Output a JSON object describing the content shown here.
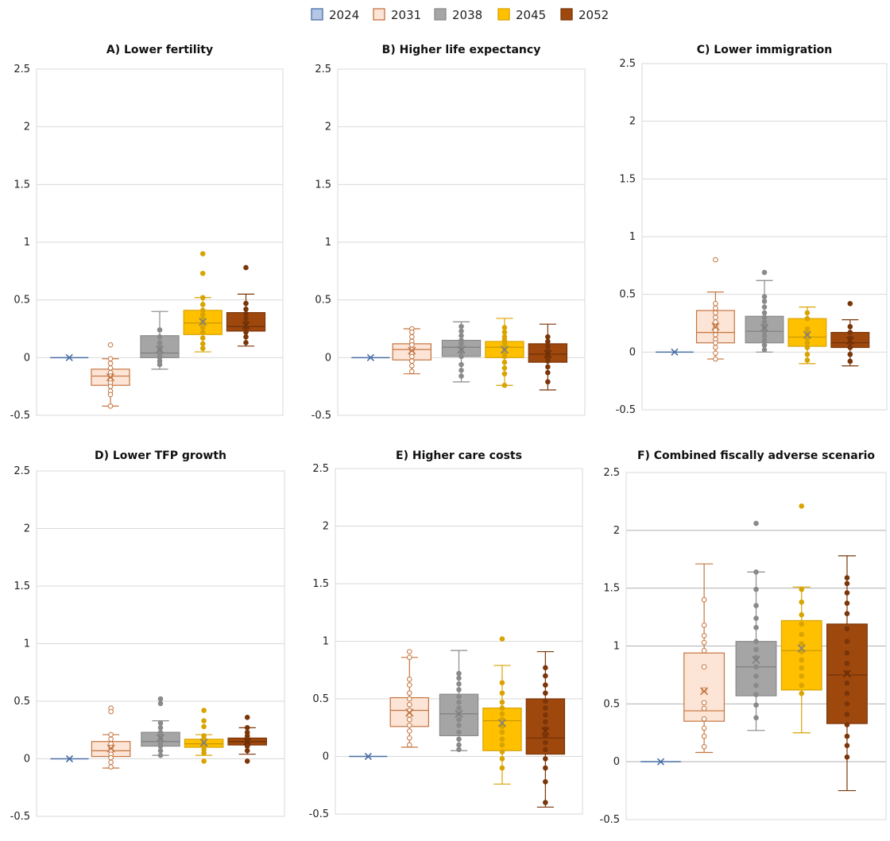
{
  "legend": [
    {
      "label": "2024",
      "fill": "#b4c7e7",
      "stroke": "#4a6fa5"
    },
    {
      "label": "2031",
      "fill": "#fce4d6",
      "stroke": "#c5743f"
    },
    {
      "label": "2038",
      "fill": "#a5a5a5",
      "stroke": "#8a8a8a"
    },
    {
      "label": "2045",
      "fill": "#ffc000",
      "stroke": "#d9a300"
    },
    {
      "label": "2052",
      "fill": "#9e480e",
      "stroke": "#7a3508"
    }
  ],
  "chart_data": [
    {
      "type": "boxplot",
      "title": "A) Lower fertility",
      "ylim": [
        -0.5,
        2.5
      ],
      "yticks": [
        "2.5",
        "2",
        "1.5",
        "1",
        "0.5",
        "0",
        "-0.5"
      ],
      "grid": true,
      "series": [
        {
          "name": "2024",
          "min": 0,
          "q1": 0,
          "median": 0,
          "q3": 0,
          "max": 0,
          "mean": 0,
          "points": []
        },
        {
          "name": "2031",
          "min": -0.42,
          "q1": -0.24,
          "median": -0.16,
          "q3": -0.1,
          "max": -0.01,
          "mean": -0.17,
          "points": [
            0.11,
            -0.01,
            -0.05,
            -0.09,
            -0.13,
            -0.16,
            -0.19,
            -0.22,
            -0.25,
            -0.29,
            -0.32,
            -0.42
          ]
        },
        {
          "name": "2038",
          "min": -0.1,
          "q1": 0.0,
          "median": 0.04,
          "q3": 0.19,
          "max": 0.4,
          "mean": 0.07,
          "points": [
            0.24,
            0.18,
            0.13,
            0.09,
            0.06,
            0.03,
            0.0,
            -0.03,
            -0.06
          ]
        },
        {
          "name": "2045",
          "min": 0.05,
          "q1": 0.2,
          "median": 0.3,
          "q3": 0.41,
          "max": 0.52,
          "mean": 0.31,
          "points": [
            0.9,
            0.73,
            0.52,
            0.46,
            0.41,
            0.37,
            0.33,
            0.3,
            0.26,
            0.22,
            0.17,
            0.12,
            0.08
          ]
        },
        {
          "name": "2052",
          "min": 0.1,
          "q1": 0.23,
          "median": 0.27,
          "q3": 0.39,
          "max": 0.55,
          "mean": 0.28,
          "points": [
            0.78,
            0.47,
            0.42,
            0.38,
            0.34,
            0.3,
            0.26,
            0.22,
            0.18,
            0.13
          ]
        }
      ]
    },
    {
      "type": "boxplot",
      "title": "B) Higher life expectancy",
      "ylim": [
        -0.5,
        2.5
      ],
      "yticks": [
        "2.5",
        "2",
        "1.5",
        "1",
        "0.5",
        "0",
        "-0.5"
      ],
      "grid": true,
      "series": [
        {
          "name": "2024",
          "min": 0,
          "q1": 0,
          "median": 0,
          "q3": 0,
          "max": 0,
          "mean": 0,
          "points": []
        },
        {
          "name": "2031",
          "min": -0.14,
          "q1": -0.02,
          "median": 0.07,
          "q3": 0.12,
          "max": 0.25,
          "mean": 0.06,
          "points": [
            0.25,
            0.22,
            0.18,
            0.14,
            0.11,
            0.07,
            0.04,
            0.01,
            -0.03,
            -0.07,
            -0.12
          ]
        },
        {
          "name": "2038",
          "min": -0.21,
          "q1": 0.01,
          "median": 0.09,
          "q3": 0.15,
          "max": 0.31,
          "mean": 0.07,
          "points": [
            0.27,
            0.23,
            0.19,
            0.15,
            0.12,
            0.08,
            0.05,
            0.01,
            -0.06,
            -0.11,
            -0.16
          ]
        },
        {
          "name": "2045",
          "min": -0.24,
          "q1": 0.0,
          "median": 0.09,
          "q3": 0.14,
          "max": 0.34,
          "mean": 0.07,
          "points": [
            0.26,
            0.22,
            0.18,
            0.15,
            0.12,
            0.08,
            0.04,
            0.01,
            -0.04,
            -0.09,
            -0.14,
            -0.24
          ]
        },
        {
          "name": "2052",
          "min": -0.28,
          "q1": -0.04,
          "median": 0.03,
          "q3": 0.12,
          "max": 0.29,
          "mean": 0.03,
          "points": [
            0.18,
            0.14,
            0.1,
            0.06,
            0.03,
            0.0,
            -0.03,
            -0.08,
            -0.13,
            -0.21
          ]
        }
      ]
    },
    {
      "type": "boxplot",
      "title": "C) Lower immigration",
      "ylim": [
        -0.5,
        2.5
      ],
      "yticks": [
        "2.5",
        "2",
        "1.5",
        "1",
        "0.5",
        "0",
        "-0.5"
      ],
      "grid": true,
      "series": [
        {
          "name": "2024",
          "min": 0,
          "q1": 0,
          "median": 0,
          "q3": 0,
          "max": 0,
          "mean": 0,
          "points": []
        },
        {
          "name": "2031",
          "min": -0.06,
          "q1": 0.08,
          "median": 0.17,
          "q3": 0.36,
          "max": 0.52,
          "mean": 0.22,
          "points": [
            0.8,
            0.42,
            0.38,
            0.34,
            0.3,
            0.26,
            0.22,
            0.19,
            0.15,
            0.11,
            0.08,
            0.04,
            -0.01,
            -0.06
          ]
        },
        {
          "name": "2038",
          "min": 0.0,
          "q1": 0.08,
          "median": 0.18,
          "q3": 0.31,
          "max": 0.62,
          "mean": 0.21,
          "points": [
            0.69,
            0.48,
            0.44,
            0.39,
            0.34,
            0.3,
            0.26,
            0.22,
            0.18,
            0.14,
            0.1,
            0.06,
            0.02
          ]
        },
        {
          "name": "2045",
          "min": -0.1,
          "q1": 0.05,
          "median": 0.13,
          "q3": 0.29,
          "max": 0.39,
          "mean": 0.15,
          "points": [
            0.34,
            0.29,
            0.2,
            0.16,
            0.12,
            0.08,
            0.04,
            -0.02,
            -0.07
          ]
        },
        {
          "name": "2052",
          "min": -0.12,
          "q1": 0.04,
          "median": 0.08,
          "q3": 0.17,
          "max": 0.28,
          "mean": 0.1,
          "points": [
            0.42,
            0.22,
            0.17,
            0.12,
            0.08,
            0.04,
            -0.02,
            -0.08
          ]
        }
      ]
    },
    {
      "type": "boxplot",
      "title": "D) Lower TFP growth",
      "ylim": [
        -0.5,
        2.5
      ],
      "yticks": [
        "2.5",
        "2",
        "1.5",
        "1",
        "0.5",
        "0",
        "-0.5"
      ],
      "grid": true,
      "series": [
        {
          "name": "2024",
          "min": 0,
          "q1": 0,
          "median": 0,
          "q3": 0,
          "max": 0,
          "mean": 0,
          "points": []
        },
        {
          "name": "2031",
          "min": -0.08,
          "q1": 0.02,
          "median": 0.07,
          "q3": 0.15,
          "max": 0.21,
          "mean": 0.09,
          "points": [
            0.44,
            0.41,
            0.21,
            0.17,
            0.13,
            0.1,
            0.07,
            0.04,
            0.01,
            -0.03,
            -0.07
          ]
        },
        {
          "name": "2038",
          "min": 0.03,
          "q1": 0.11,
          "median": 0.15,
          "q3": 0.23,
          "max": 0.33,
          "mean": 0.18,
          "points": [
            0.52,
            0.48,
            0.31,
            0.27,
            0.23,
            0.2,
            0.17,
            0.14,
            0.11,
            0.07,
            0.03
          ]
        },
        {
          "name": "2045",
          "min": 0.03,
          "q1": 0.1,
          "median": 0.13,
          "q3": 0.17,
          "max": 0.21,
          "mean": 0.14,
          "points": [
            0.42,
            0.33,
            0.28,
            0.2,
            0.17,
            0.14,
            0.11,
            0.08,
            0.05,
            -0.02
          ]
        },
        {
          "name": "2052",
          "min": 0.04,
          "q1": 0.12,
          "median": 0.15,
          "q3": 0.18,
          "max": 0.27,
          "mean": 0.15,
          "points": [
            0.36,
            0.27,
            0.23,
            0.2,
            0.17,
            0.14,
            0.11,
            0.07,
            -0.02
          ]
        }
      ]
    },
    {
      "type": "boxplot",
      "title": "E) Higher care costs",
      "ylim": [
        -0.5,
        2.5
      ],
      "yticks": [
        "2.5",
        "2",
        "1.5",
        "1",
        "0.5",
        "0",
        "-0.5"
      ],
      "grid": true,
      "series": [
        {
          "name": "2024",
          "min": 0,
          "q1": 0,
          "median": 0,
          "q3": 0,
          "max": 0,
          "mean": 0,
          "points": []
        },
        {
          "name": "2031",
          "min": 0.08,
          "q1": 0.26,
          "median": 0.4,
          "q3": 0.51,
          "max": 0.86,
          "mean": 0.38,
          "points": [
            0.91,
            0.86,
            0.67,
            0.62,
            0.55,
            0.5,
            0.45,
            0.4,
            0.36,
            0.32,
            0.27,
            0.22,
            0.16,
            0.1
          ]
        },
        {
          "name": "2038",
          "min": 0.05,
          "q1": 0.18,
          "median": 0.37,
          "q3": 0.54,
          "max": 0.92,
          "mean": 0.37,
          "points": [
            0.72,
            0.68,
            0.63,
            0.58,
            0.52,
            0.47,
            0.42,
            0.37,
            0.32,
            0.27,
            0.21,
            0.15,
            0.1,
            0.06
          ]
        },
        {
          "name": "2045",
          "min": -0.24,
          "q1": 0.05,
          "median": 0.31,
          "q3": 0.42,
          "max": 0.79,
          "mean": 0.29,
          "points": [
            1.02,
            0.64,
            0.55,
            0.47,
            0.42,
            0.37,
            0.32,
            0.26,
            0.21,
            0.15,
            0.1,
            0.04,
            -0.02,
            -0.1
          ]
        },
        {
          "name": "2052",
          "min": -0.44,
          "q1": 0.02,
          "median": 0.16,
          "q3": 0.5,
          "max": 0.91,
          "mean": 0.22,
          "points": [
            0.77,
            0.7,
            0.62,
            0.55,
            0.48,
            0.42,
            0.36,
            0.3,
            0.24,
            0.18,
            0.12,
            0.06,
            -0.02,
            -0.1,
            -0.22,
            -0.4
          ]
        }
      ]
    },
    {
      "type": "boxplot",
      "title": "F) Combined fiscally adverse scenario",
      "ylim": [
        -0.5,
        2.5
      ],
      "yticks": [
        "2.5",
        "2",
        "1.5",
        "1",
        "0.5",
        "0",
        "-0.5"
      ],
      "grid": true,
      "series": [
        {
          "name": "2024",
          "min": 0,
          "q1": 0,
          "median": 0,
          "q3": 0,
          "max": 0,
          "mean": 0,
          "points": []
        },
        {
          "name": "2031",
          "min": 0.08,
          "q1": 0.35,
          "median": 0.44,
          "q3": 0.94,
          "max": 1.71,
          "mean": 0.61,
          "points": [
            1.4,
            1.18,
            1.09,
            1.03,
            0.96,
            0.82,
            0.62,
            0.51,
            0.46,
            0.37,
            0.29,
            0.22,
            0.13
          ]
        },
        {
          "name": "2038",
          "min": 0.27,
          "q1": 0.57,
          "median": 0.82,
          "q3": 1.04,
          "max": 1.64,
          "mean": 0.88,
          "points": [
            2.06,
            1.64,
            1.49,
            1.35,
            1.24,
            1.16,
            1.04,
            0.97,
            0.9,
            0.82,
            0.74,
            0.66,
            0.58,
            0.49,
            0.38
          ]
        },
        {
          "name": "2045",
          "min": 0.25,
          "q1": 0.62,
          "median": 0.96,
          "q3": 1.22,
          "max": 1.51,
          "mean": 0.98,
          "points": [
            2.21,
            1.49,
            1.38,
            1.27,
            1.19,
            1.1,
            1.02,
            0.95,
            0.88,
            0.81,
            0.74,
            0.66,
            0.59
          ]
        },
        {
          "name": "2052",
          "min": -0.25,
          "q1": 0.33,
          "median": 0.75,
          "q3": 1.19,
          "max": 1.78,
          "mean": 0.76,
          "points": [
            1.59,
            1.54,
            1.46,
            1.37,
            1.28,
            1.15,
            1.04,
            0.94,
            0.85,
            0.77,
            0.68,
            0.59,
            0.5,
            0.41,
            0.32,
            0.22,
            0.14,
            0.04
          ]
        }
      ]
    }
  ]
}
